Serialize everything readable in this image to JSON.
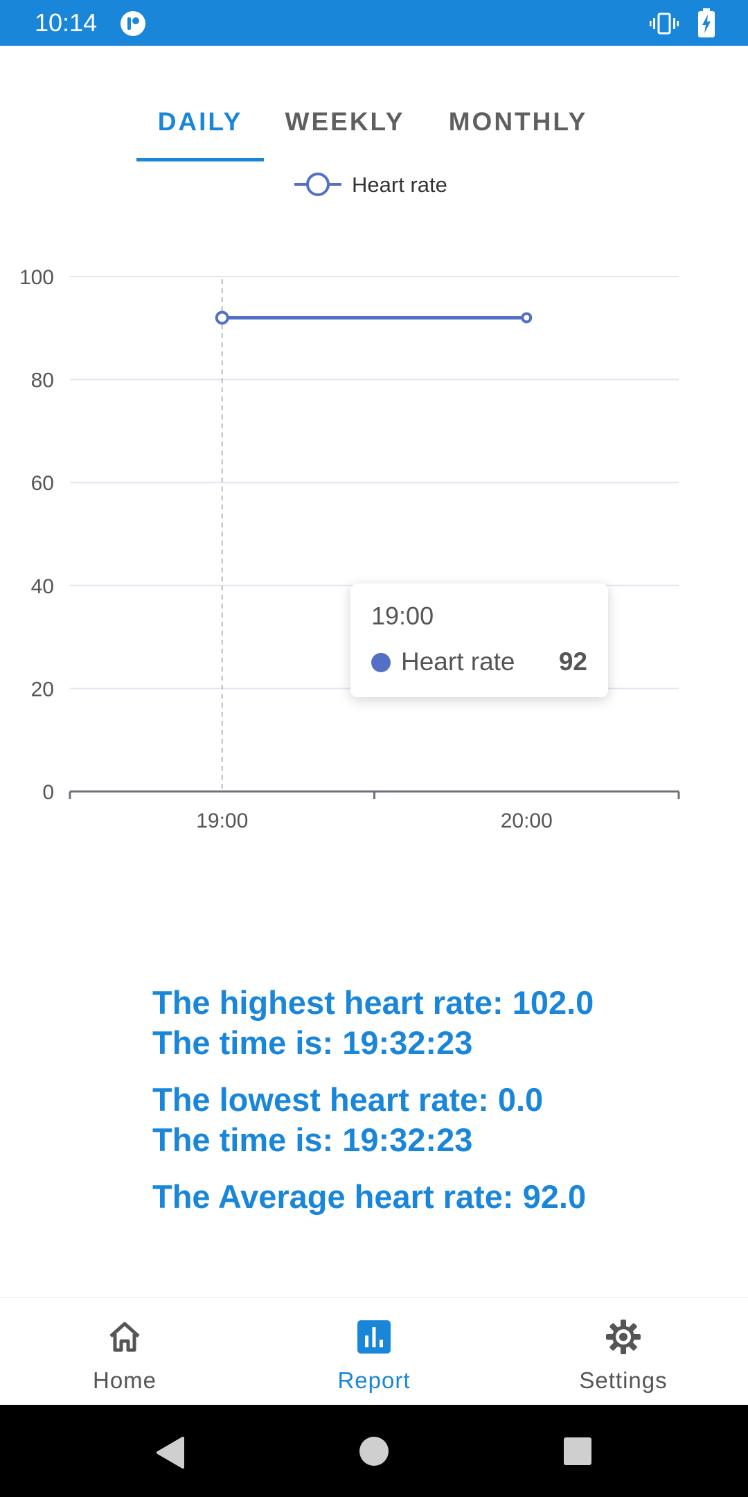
{
  "status_bar": {
    "time": "10:14",
    "icons": [
      "app-notification-icon",
      "vibrate-icon",
      "battery-charging-icon"
    ]
  },
  "tabs": [
    {
      "label": "DAILY",
      "active": true
    },
    {
      "label": "WEEKLY",
      "active": false
    },
    {
      "label": "MONTHLY",
      "active": false
    }
  ],
  "chart_data": {
    "type": "line",
    "legend": "Heart rate",
    "legend_position": "top-center",
    "categories": [
      "19:00",
      "20:00"
    ],
    "series": [
      {
        "name": "Heart rate",
        "values": [
          92,
          92
        ],
        "color": "#5470c6"
      }
    ],
    "ylim": [
      0,
      100
    ],
    "yticks": [
      0,
      20,
      40,
      60,
      80,
      100
    ],
    "grid": true
  },
  "tooltip": {
    "title": "19:00",
    "label": "Heart rate",
    "value": "92"
  },
  "stats": {
    "highest": "The highest heart rate: 102.0",
    "highest_time": "The time is: 19:32:23",
    "lowest": "The lowest heart rate: 0.0",
    "lowest_time": "The time is: 19:32:23",
    "average": "The Average heart rate: 92.0"
  },
  "bottom_nav": [
    {
      "label": "Home",
      "icon": "home-icon",
      "active": false
    },
    {
      "label": "Report",
      "icon": "bar-chart-icon",
      "active": true
    },
    {
      "label": "Settings",
      "icon": "gear-icon",
      "active": false
    }
  ],
  "colors": {
    "accent": "#1a86d9",
    "series": "#5470c6"
  }
}
